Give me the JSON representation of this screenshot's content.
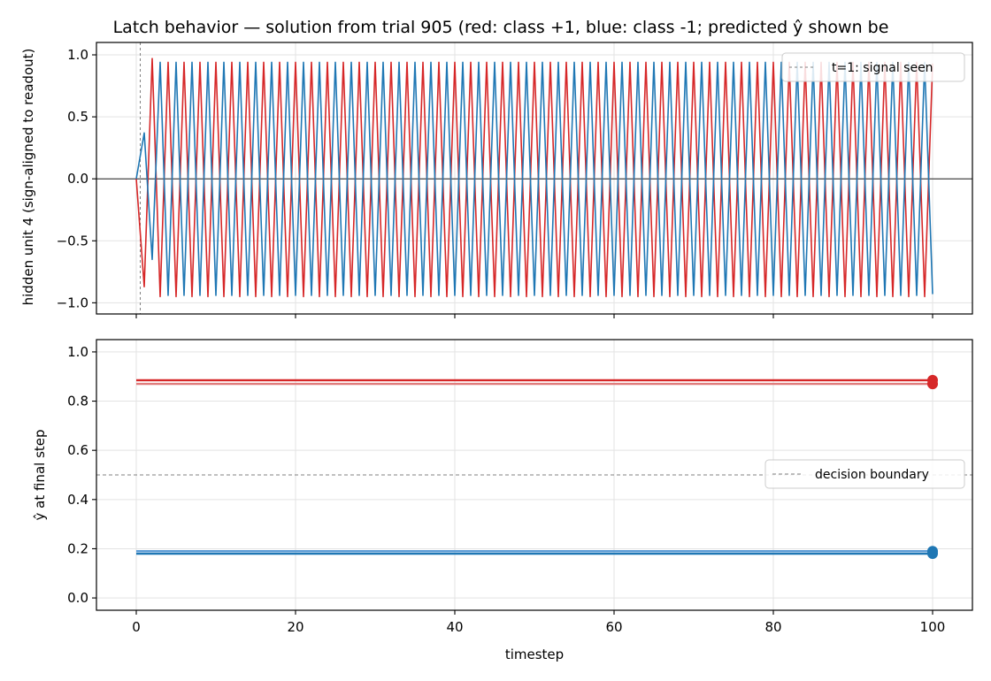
{
  "title": "Latch behavior — solution from trial 905  (red: class +1, blue: class -1; predicted ŷ shown be",
  "colors": {
    "class_pos": "#d62728",
    "class_neg": "#1f77b4",
    "reference": "#808080"
  },
  "chart_data": [
    {
      "type": "line",
      "ylabel": "hidden unit 4 (sign-aligned to readout)",
      "xlim": [
        -5,
        105
      ],
      "ylim": [
        -1.09,
        1.1
      ],
      "yticks": [
        1.0,
        0.5,
        0.0,
        -0.5,
        -1.0
      ],
      "ytick_labels": [
        "1.0",
        "0.5",
        "0.0",
        "−0.5",
        "−1.0"
      ],
      "xticks": [
        0,
        20,
        40,
        60,
        80,
        100
      ],
      "grid": true,
      "legend": {
        "placement": "top-right",
        "label": "t=1: signal seen"
      },
      "vline_x": 0.5,
      "hline_y": 0,
      "series": [
        {
          "class": "+1",
          "color": "#d62728",
          "t": [
            0,
            1,
            2
          ],
          "values": [
            0.0,
            -0.87,
            0.97
          ],
          "pattern": "alternating",
          "period": 2,
          "amplitude_even": 0.94,
          "amplitude_odd": -0.95,
          "t_end": 100,
          "final_value": 0.93
        },
        {
          "class": "-1",
          "color": "#1f77b4",
          "t": [
            0,
            1,
            2
          ],
          "values": [
            0.0,
            0.37,
            -0.65
          ],
          "pattern": "alternating",
          "period": 2,
          "amplitude_even": -0.94,
          "amplitude_odd": 0.94,
          "t_end": 100,
          "final_value": -0.93
        }
      ]
    },
    {
      "type": "line",
      "xlabel": "timestep",
      "ylabel": "ŷ at final step",
      "xlim": [
        -5,
        105
      ],
      "ylim": [
        -0.05,
        1.05
      ],
      "yticks": [
        0.0,
        0.2,
        0.4,
        0.6,
        0.8,
        1.0
      ],
      "ytick_labels": [
        "0.0",
        "0.2",
        "0.4",
        "0.6",
        "0.8",
        "1.0"
      ],
      "xticks": [
        0,
        20,
        40,
        60,
        80,
        100
      ],
      "xtick_labels": [
        "0",
        "20",
        "40",
        "60",
        "80",
        "100"
      ],
      "grid": true,
      "legend": {
        "placement": "center-right",
        "label": "decision boundary"
      },
      "hline_y": 0.5,
      "series": [
        {
          "class": "+1",
          "color": "#d62728",
          "x": [
            0,
            100
          ],
          "values": [
            0.885,
            0.885
          ]
        },
        {
          "class": "+1",
          "color": "#e07b7b",
          "x": [
            0,
            100
          ],
          "values": [
            0.87,
            0.87
          ]
        },
        {
          "class": "-1",
          "color": "#5b9bd5",
          "x": [
            0,
            100
          ],
          "values": [
            0.19,
            0.19
          ]
        },
        {
          "class": "-1",
          "color": "#1f77b4",
          "x": [
            0,
            100
          ],
          "values": [
            0.18,
            0.18
          ]
        }
      ],
      "markers": [
        {
          "x": 100,
          "y": 0.885,
          "color": "#d62728"
        },
        {
          "x": 100,
          "y": 0.87,
          "color": "#d62728"
        },
        {
          "x": 100,
          "y": 0.19,
          "color": "#1f77b4"
        },
        {
          "x": 100,
          "y": 0.18,
          "color": "#1f77b4"
        }
      ]
    }
  ]
}
